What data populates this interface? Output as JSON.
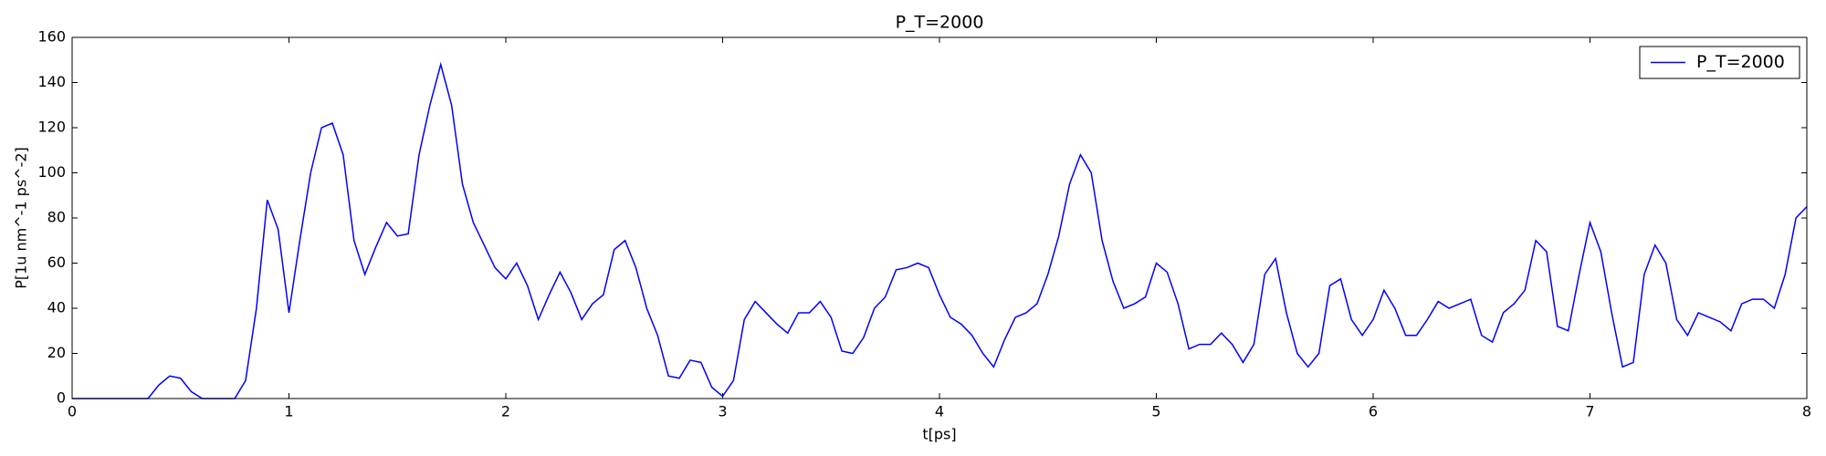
{
  "chart_data": {
    "type": "line",
    "title": "P_T=2000",
    "xlabel": "t[ps]",
    "ylabel": "P[1u nm^-1 ps^-2]",
    "x": [
      0,
      0.05,
      0.1,
      0.15,
      0.2,
      0.25,
      0.3,
      0.35,
      0.4,
      0.45,
      0.5,
      0.55,
      0.6,
      0.65,
      0.7,
      0.75,
      0.8,
      0.85,
      0.9,
      0.95,
      1,
      1.05,
      1.1,
      1.15,
      1.2,
      1.25,
      1.3,
      1.35,
      1.4,
      1.45,
      1.5,
      1.55,
      1.6,
      1.65,
      1.7,
      1.75,
      1.8,
      1.85,
      1.9,
      1.95,
      2,
      2.05,
      2.1,
      2.15,
      2.2,
      2.25,
      2.3,
      2.35,
      2.4,
      2.45,
      2.5,
      2.55,
      2.6,
      2.65,
      2.7,
      2.75,
      2.8,
      2.85,
      2.9,
      2.95,
      3,
      3.05,
      3.1,
      3.15,
      3.2,
      3.25,
      3.3,
      3.35,
      3.4,
      3.45,
      3.5,
      3.55,
      3.6,
      3.65,
      3.7,
      3.75,
      3.8,
      3.85,
      3.9,
      3.95,
      4,
      4.05,
      4.1,
      4.15,
      4.2,
      4.25,
      4.3,
      4.35,
      4.4,
      4.45,
      4.5,
      4.55,
      4.6,
      4.65,
      4.7,
      4.75,
      4.8,
      4.85,
      4.9,
      4.95,
      5,
      5.05,
      5.1,
      5.15,
      5.2,
      5.25,
      5.3,
      5.35,
      5.4,
      5.45,
      5.5,
      5.55,
      5.6,
      5.65,
      5.7,
      5.75,
      5.8,
      5.85,
      5.9,
      5.95,
      6,
      6.05,
      6.1,
      6.15,
      6.2,
      6.25,
      6.3,
      6.35,
      6.4,
      6.45,
      6.5,
      6.55,
      6.6,
      6.65,
      6.7,
      6.75,
      6.8,
      6.85,
      6.9,
      6.95,
      7,
      7.05,
      7.1,
      7.15,
      7.2,
      7.25,
      7.3,
      7.35,
      7.4,
      7.45,
      7.5,
      7.55,
      7.6,
      7.65,
      7.7,
      7.75,
      7.8,
      7.85,
      7.9,
      7.95,
      8
    ],
    "series": [
      {
        "name": "P_T=2000",
        "color": "#0000ff",
        "values": [
          0,
          0,
          0,
          0,
          0,
          0,
          0,
          0,
          6,
          10,
          9,
          3,
          0,
          0,
          0,
          0,
          8,
          40,
          88,
          75,
          38,
          70,
          100,
          120,
          122,
          108,
          70,
          55,
          67,
          78,
          72,
          73,
          108,
          130,
          148,
          130,
          95,
          78,
          68,
          58,
          53,
          60,
          50,
          35,
          46,
          56,
          47,
          35,
          42,
          46,
          66,
          70,
          58,
          40,
          28,
          10,
          9,
          17,
          16,
          5,
          1,
          8,
          35,
          43,
          38,
          33,
          29,
          38,
          38,
          43,
          36,
          21,
          20,
          27,
          40,
          45,
          57,
          58,
          60,
          58,
          46,
          36,
          33,
          28,
          20,
          14,
          26,
          36,
          38,
          42,
          55,
          72,
          95,
          108,
          100,
          70,
          52,
          40,
          42,
          45,
          60,
          56,
          42,
          22,
          24,
          24,
          29,
          24,
          16,
          24,
          55,
          62,
          38,
          20,
          14,
          20,
          50,
          53,
          35,
          28,
          35,
          48,
          40,
          28,
          28,
          35,
          43,
          40,
          42,
          44,
          28,
          25,
          38,
          42,
          48,
          70,
          65,
          32,
          30,
          55,
          78,
          65,
          38,
          14,
          16,
          55,
          68,
          60,
          35,
          28,
          38,
          36,
          34,
          30,
          42,
          44,
          44,
          40,
          55,
          80,
          85
        ]
      }
    ],
    "xlim": [
      0,
      8
    ],
    "ylim": [
      0,
      160
    ],
    "xticks": [
      0,
      1,
      2,
      3,
      4,
      5,
      6,
      7,
      8
    ],
    "yticks": [
      0,
      20,
      40,
      60,
      80,
      100,
      120,
      140,
      160
    ],
    "grid": false,
    "legend": "upper right"
  }
}
